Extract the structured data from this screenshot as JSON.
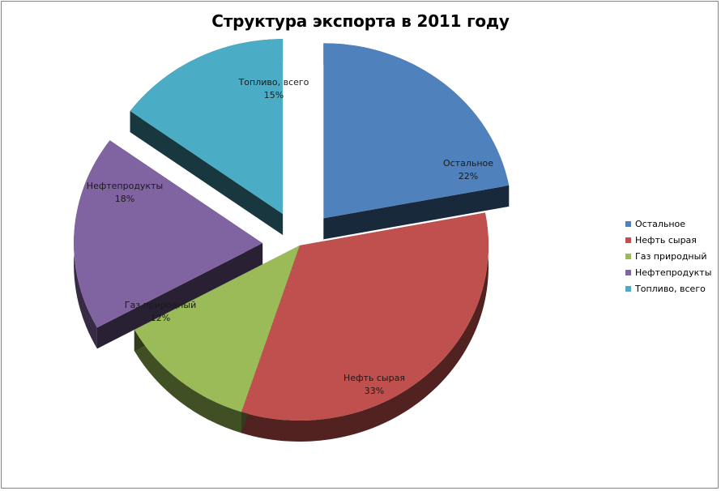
{
  "chart_data": {
    "type": "pie",
    "title": "Структура экспорта в 2011 году",
    "slices": [
      {
        "name": "Остальное",
        "label": "Остальное",
        "percent_label": "22%",
        "value": 22,
        "color": "#4F81BD",
        "exploded": true
      },
      {
        "name": "Нефть сырая",
        "label": "Нефть сырая",
        "percent_label": "33%",
        "value": 33,
        "color": "#C0504D",
        "exploded": false
      },
      {
        "name": "Газ природный",
        "label": "Газ природный",
        "percent_label": "12%",
        "value": 12,
        "color": "#9BBB59",
        "exploded": false
      },
      {
        "name": "Нефтепродукты",
        "label": "Нефтепродукты",
        "percent_label": "18%",
        "value": 18,
        "color": "#8064A2",
        "exploded": true
      },
      {
        "name": "Топливо, всего",
        "label": "Топливо, всего",
        "percent_label": "15%",
        "value": 15,
        "color": "#4BACC6",
        "exploded": true
      }
    ],
    "legend_position": "right"
  }
}
